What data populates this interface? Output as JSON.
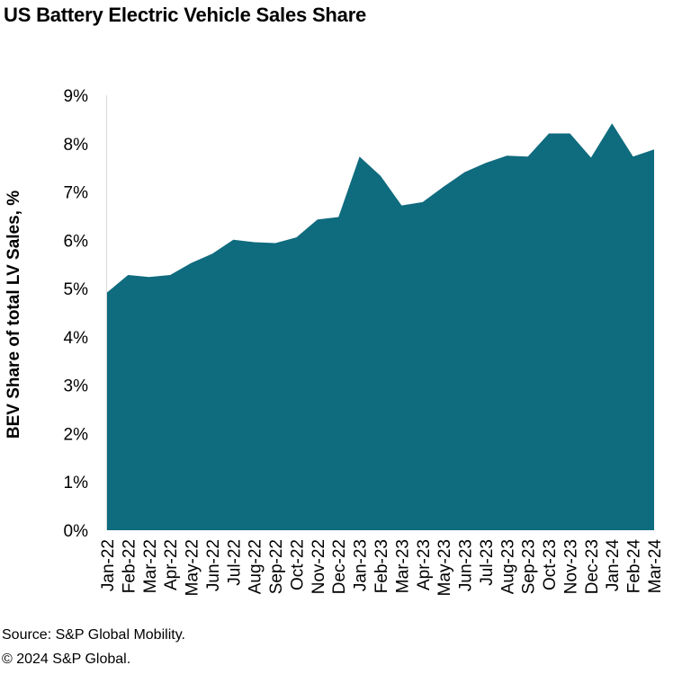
{
  "chart_data": {
    "type": "area",
    "title": "US Battery Electric Vehicle Sales Share",
    "ylabel": "BEV Share of total LV Sales, %",
    "xlabel": "",
    "ylim": [
      0,
      9
    ],
    "yticks": [
      "0%",
      "1%",
      "2%",
      "3%",
      "4%",
      "5%",
      "6%",
      "7%",
      "8%",
      "9%"
    ],
    "grid": false,
    "categories": [
      "Jan-22",
      "Feb-22",
      "Mar-22",
      "Apr-22",
      "May-22",
      "Jun-22",
      "Jul-22",
      "Aug-22",
      "Sep-22",
      "Oct-22",
      "Nov-22",
      "Dec-22",
      "Jan-23",
      "Feb-23",
      "Mar-23",
      "Apr-23",
      "May-23",
      "Jun-23",
      "Jul-23",
      "Aug-23",
      "Sep-23",
      "Oct-23",
      "Nov-23",
      "Dec-23",
      "Jan-24",
      "Feb-24",
      "Mar-24"
    ],
    "series": [
      {
        "values": [
          4.92,
          5.28,
          5.24,
          5.28,
          5.53,
          5.72,
          6.01,
          5.96,
          5.94,
          6.06,
          6.43,
          6.48,
          7.73,
          7.33,
          6.72,
          6.79,
          7.11,
          7.41,
          7.6,
          7.75,
          7.73,
          8.21,
          8.21,
          7.71,
          8.42,
          7.73,
          7.88
        ],
        "color": "#0f6b7e"
      }
    ]
  },
  "footer": {
    "source": "Source: S&P Global Mobility.",
    "copyright": "© 2024 S&P Global."
  }
}
